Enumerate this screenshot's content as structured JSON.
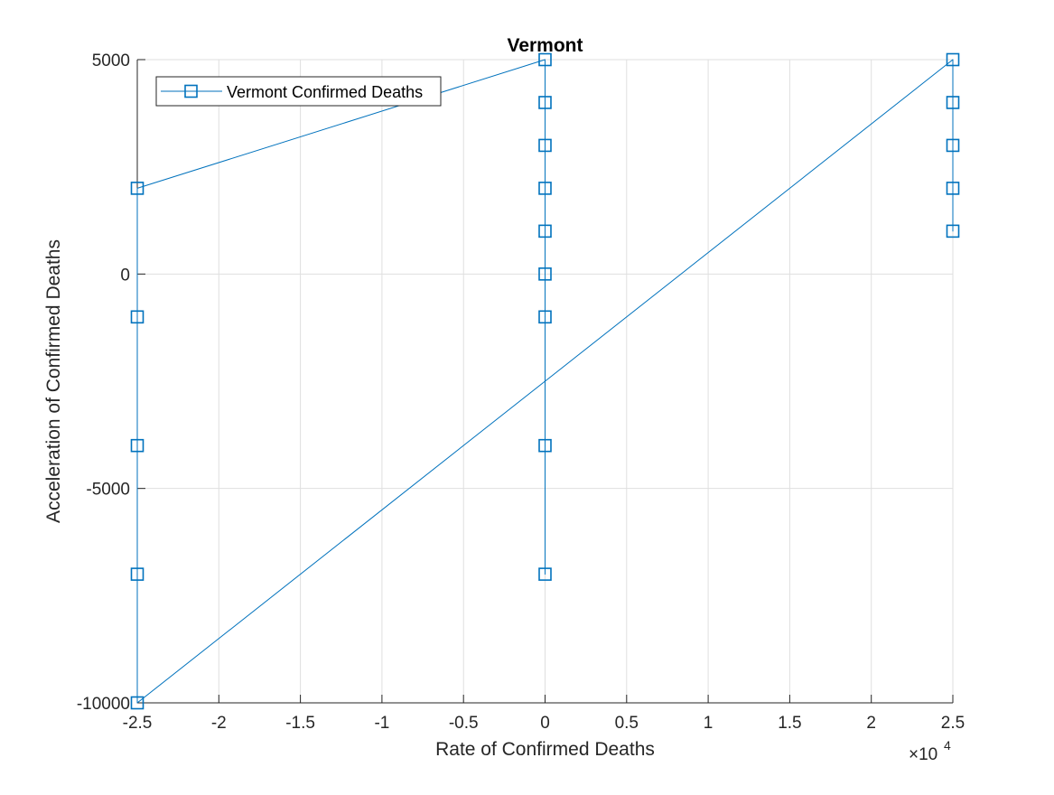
{
  "chart_data": {
    "type": "line",
    "title": "Vermont",
    "xlabel": "Rate of Confirmed Deaths",
    "ylabel": "Acceleration of Confirmed Deaths",
    "xlim": [
      -25000,
      25000
    ],
    "ylim": [
      -10000,
      5000
    ],
    "x_exponent_label": "×10",
    "x_exponent_power": "4",
    "x_ticks": [
      -25000,
      -20000,
      -15000,
      -10000,
      -5000,
      0,
      5000,
      10000,
      15000,
      20000,
      25000
    ],
    "x_tick_labels": [
      "-2.5",
      "-2",
      "-1.5",
      "-1",
      "-0.5",
      "0",
      "0.5",
      "1",
      "1.5",
      "2",
      "2.5"
    ],
    "y_ticks": [
      -10000,
      -5000,
      0,
      5000
    ],
    "y_tick_labels": [
      "-10000",
      "-5000",
      "0",
      "5000"
    ],
    "grid": true,
    "legend_position": "top-left",
    "marker": "square",
    "color": "#0072BD",
    "series": [
      {
        "name": "Vermont Confirmed Deaths",
        "x": [
          0,
          0,
          0,
          0,
          0,
          0,
          0,
          0,
          0,
          -25000,
          -25000,
          -25000,
          -25000,
          -25000,
          25000,
          25000,
          25000,
          25000,
          25000
        ],
        "y": [
          -7000,
          -4000,
          -1000,
          0,
          1000,
          2000,
          3000,
          4000,
          5000,
          2000,
          -1000,
          -4000,
          -7000,
          -10000,
          5000,
          4000,
          3000,
          2000,
          1000
        ],
        "connect_path": [
          13,
          0,
          1,
          2,
          3,
          4,
          5,
          6,
          7,
          8
        ]
      }
    ]
  }
}
